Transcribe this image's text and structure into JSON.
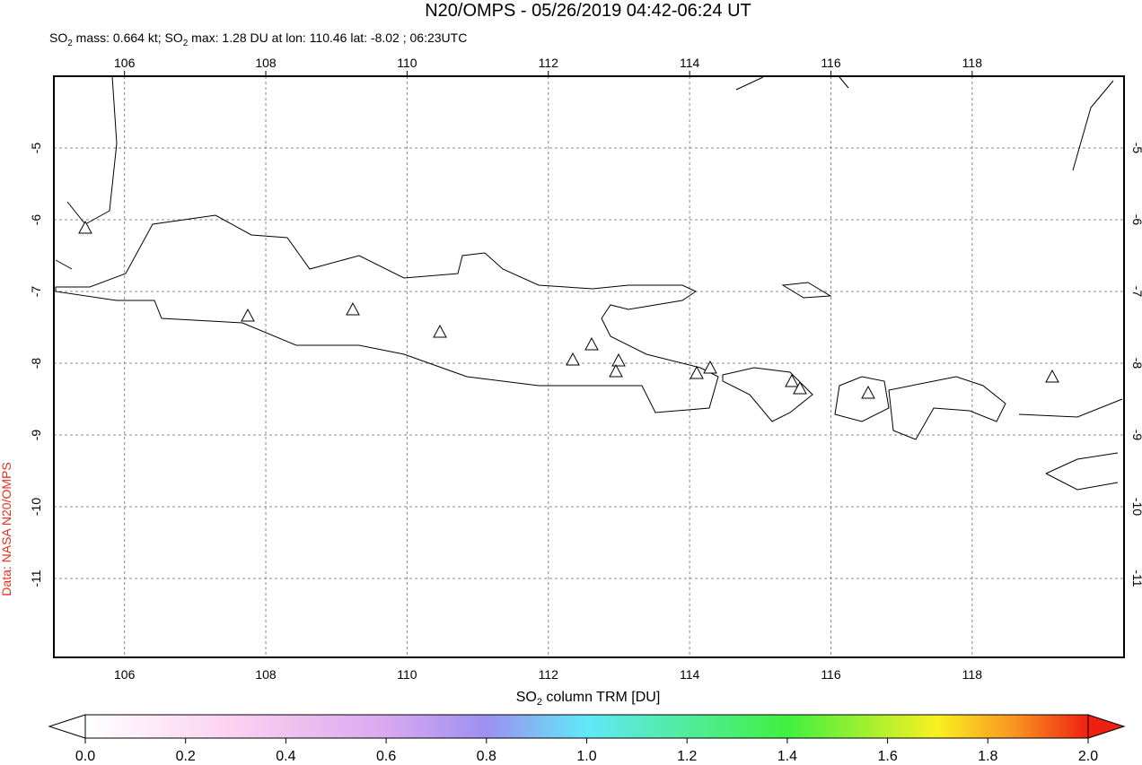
{
  "header": {
    "title": "N20/OMPS - 05/26/2019 04:42-06:24 UT",
    "subtitle": [
      "SO",
      "2",
      " mass: 0.664 kt; SO",
      "2",
      " max: 1.28 DU at lon: 110.46 lat: -8.02 ; 06:23UTC"
    ]
  },
  "credit": "Data: NASA N20/OMPS",
  "map": {
    "xlim": [
      105,
      120.15
    ],
    "ylim": [
      -12.1,
      -4.0
    ],
    "xticks": [
      106,
      108,
      110,
      112,
      114,
      116,
      118
    ],
    "yticks": [
      -5,
      -6,
      -7,
      -8,
      -9,
      -10,
      -11
    ]
  },
  "colorbar": {
    "label": [
      "SO",
      "2",
      " column TRM [DU]"
    ],
    "lim": [
      0,
      2
    ],
    "ticks": [
      {
        "value": 0,
        "label": "0.0"
      },
      {
        "value": 0.2,
        "label": "0.2"
      },
      {
        "value": 0.4,
        "label": "0.4"
      },
      {
        "value": 0.6,
        "label": "0.6"
      },
      {
        "value": 0.8,
        "label": "0.8"
      },
      {
        "value": 1.0,
        "label": "1.0"
      },
      {
        "value": 1.2,
        "label": "1.2"
      },
      {
        "value": 1.4,
        "label": "1.4"
      },
      {
        "value": 1.6,
        "label": "1.6"
      },
      {
        "value": 1.8,
        "label": "1.8"
      },
      {
        "value": 2.0,
        "label": "2.0"
      }
    ]
  }
}
